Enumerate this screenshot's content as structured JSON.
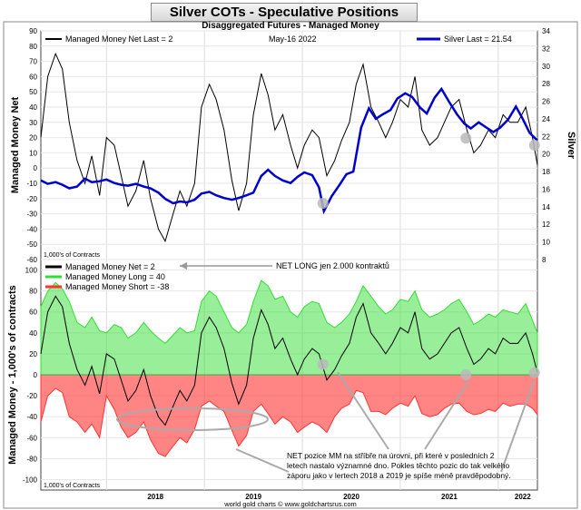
{
  "title": "Silver COTs - Speculative Positions",
  "footer": "world gold charts © www.goldchartsrus.com",
  "years": [
    "2018",
    "2019",
    "2020",
    "2021",
    "2022"
  ],
  "colors": {
    "net": "#000000",
    "silver": "#0000cc",
    "long": "#33dd33",
    "short": "#ff3333",
    "marker": "#b8b8b8"
  },
  "chart_data": [
    {
      "type": "line",
      "subtitle": "Disaggregated Futures - Managed Money",
      "date_label": "May-16  2022",
      "legend": {
        "net": "Managed Money Net   Last = 2",
        "silver": "Silver Last = 21.54"
      },
      "ylabel_left": "Managed Money Net",
      "ylabel_right": "Silver",
      "units_note": "1,000's of Contracts",
      "ylim_left": [
        -60,
        90
      ],
      "ylim_right": [
        8,
        34
      ],
      "yticks_left": [
        90,
        80,
        70,
        60,
        50,
        40,
        30,
        20,
        10,
        0,
        -10,
        -20,
        -30,
        -40,
        -50,
        -60
      ],
      "yticks_right": [
        34,
        32,
        30,
        28,
        26,
        24,
        22,
        20,
        18,
        16,
        14,
        12,
        10,
        8
      ],
      "x_range": [
        2017.33,
        2022.4
      ],
      "series": [
        {
          "name": "Managed Money Net",
          "axis": "left",
          "x": [
            2017.33,
            2017.4,
            2017.48,
            2017.55,
            2017.62,
            2017.7,
            2017.78,
            2017.85,
            2017.93,
            2018.0,
            2018.08,
            2018.15,
            2018.22,
            2018.3,
            2018.38,
            2018.45,
            2018.53,
            2018.6,
            2018.68,
            2018.75,
            2018.82,
            2018.9,
            2018.97,
            2019.05,
            2019.12,
            2019.2,
            2019.28,
            2019.35,
            2019.43,
            2019.5,
            2019.58,
            2019.65,
            2019.72,
            2019.8,
            2019.88,
            2019.95,
            2020.02,
            2020.1,
            2020.17,
            2020.25,
            2020.33,
            2020.4,
            2020.48,
            2020.55,
            2020.62,
            2020.7,
            2020.78,
            2020.85,
            2020.92,
            2021.0,
            2021.08,
            2021.15,
            2021.22,
            2021.3,
            2021.38,
            2021.45,
            2021.52,
            2021.6,
            2021.68,
            2021.75,
            2021.82,
            2021.9,
            2021.97,
            2022.05,
            2022.12,
            2022.2,
            2022.28,
            2022.35,
            2022.4
          ],
          "y": [
            20,
            60,
            75,
            65,
            30,
            5,
            -10,
            8,
            -18,
            20,
            15,
            -5,
            -25,
            -15,
            5,
            -20,
            -40,
            -48,
            -30,
            -15,
            -25,
            -10,
            40,
            55,
            45,
            25,
            -8,
            -28,
            -10,
            35,
            62,
            48,
            25,
            35,
            15,
            0,
            15,
            25,
            20,
            -5,
            5,
            18,
            30,
            55,
            68,
            40,
            30,
            20,
            30,
            45,
            40,
            60,
            25,
            15,
            20,
            30,
            40,
            45,
            25,
            10,
            15,
            25,
            20,
            35,
            30,
            30,
            40,
            20,
            2
          ]
        },
        {
          "name": "Silver",
          "axis": "right",
          "x": [
            2017.33,
            2017.4,
            2017.48,
            2017.55,
            2017.62,
            2017.7,
            2017.78,
            2017.85,
            2017.93,
            2018.0,
            2018.08,
            2018.15,
            2018.22,
            2018.3,
            2018.38,
            2018.45,
            2018.53,
            2018.6,
            2018.68,
            2018.75,
            2018.82,
            2018.9,
            2018.97,
            2019.05,
            2019.12,
            2019.2,
            2019.28,
            2019.35,
            2019.43,
            2019.5,
            2019.58,
            2019.65,
            2019.72,
            2019.8,
            2019.88,
            2019.95,
            2020.02,
            2020.1,
            2020.17,
            2020.22,
            2020.3,
            2020.38,
            2020.45,
            2020.52,
            2020.6,
            2020.68,
            2020.75,
            2020.82,
            2020.9,
            2020.97,
            2021.05,
            2021.12,
            2021.2,
            2021.27,
            2021.35,
            2021.42,
            2021.5,
            2021.58,
            2021.65,
            2021.72,
            2021.8,
            2021.88,
            2021.95,
            2022.02,
            2022.1,
            2022.18,
            2022.25,
            2022.32,
            2022.4
          ],
          "y": [
            17.0,
            16.6,
            16.8,
            16.5,
            16.1,
            16.3,
            17.2,
            16.8,
            16.9,
            17.1,
            16.7,
            16.5,
            16.4,
            16.6,
            16.3,
            16.1,
            15.6,
            14.9,
            14.4,
            14.6,
            14.5,
            14.8,
            15.5,
            15.7,
            15.3,
            15.0,
            14.8,
            15.0,
            15.3,
            15.6,
            17.5,
            18.2,
            17.5,
            17.0,
            16.7,
            17.4,
            17.9,
            17.6,
            16.2,
            13.5,
            15.2,
            16.5,
            17.7,
            18.0,
            23.0,
            25.2,
            24.0,
            24.5,
            25.0,
            26.3,
            26.9,
            26.5,
            25.3,
            24.6,
            26.4,
            27.4,
            25.9,
            24.5,
            23.5,
            22.9,
            23.6,
            23.0,
            22.5,
            23.0,
            23.9,
            25.4,
            24.0,
            22.4,
            21.54
          ]
        }
      ],
      "markers": [
        {
          "x": 2020.21,
          "y": 14.4
        },
        {
          "x": 2021.67,
          "y": 21.8
        },
        {
          "x": 2022.37,
          "y": 21.0
        }
      ]
    },
    {
      "type": "area",
      "legend": [
        "Managed Money Net   = 2",
        "Managed Money Long   = 40",
        "Managed Money Short  = -38"
      ],
      "annotation_top": "NET LONG jen 2.000 kontraktů",
      "annotation_bottom": [
        "NET pozice MM na stříbře na úrovni, při které v posledních 2",
        "letech nastalo významné dno. Pokles těchto pozic do tak velkého",
        "záporu jako v lertech 2018 a 2019 je spíše méně pravděpodobný."
      ],
      "ylabel": "Managed Money - 1,000's of contracts",
      "units_note": "1,000's of Contracts",
      "ylim": [
        -110,
        110
      ],
      "yticks": [
        100,
        80,
        60,
        40,
        20,
        0,
        -20,
        -40,
        -60,
        -80,
        -100
      ],
      "x_range": [
        2017.33,
        2022.4
      ],
      "series": [
        {
          "name": "Managed Money Long",
          "x": [
            2017.33,
            2017.4,
            2017.48,
            2017.55,
            2017.62,
            2017.7,
            2017.78,
            2017.85,
            2017.93,
            2018.0,
            2018.08,
            2018.15,
            2018.22,
            2018.3,
            2018.38,
            2018.45,
            2018.53,
            2018.6,
            2018.68,
            2018.75,
            2018.82,
            2018.9,
            2018.97,
            2019.05,
            2019.12,
            2019.2,
            2019.28,
            2019.35,
            2019.43,
            2019.5,
            2019.58,
            2019.65,
            2019.72,
            2019.8,
            2019.88,
            2019.95,
            2020.02,
            2020.1,
            2020.17,
            2020.25,
            2020.33,
            2020.4,
            2020.48,
            2020.55,
            2020.62,
            2020.7,
            2020.78,
            2020.85,
            2020.92,
            2021.0,
            2021.08,
            2021.15,
            2021.22,
            2021.3,
            2021.38,
            2021.45,
            2021.52,
            2021.6,
            2021.68,
            2021.75,
            2021.82,
            2021.9,
            2021.97,
            2022.05,
            2022.12,
            2022.2,
            2022.28,
            2022.35,
            2022.4
          ],
          "y": [
            65,
            80,
            88,
            82,
            70,
            50,
            45,
            55,
            42,
            40,
            48,
            45,
            35,
            40,
            50,
            42,
            35,
            30,
            38,
            45,
            40,
            42,
            70,
            80,
            75,
            60,
            45,
            40,
            48,
            70,
            90,
            85,
            72,
            75,
            60,
            55,
            65,
            70,
            68,
            50,
            45,
            50,
            58,
            70,
            85,
            75,
            65,
            58,
            62,
            72,
            70,
            80,
            62,
            55,
            58,
            62,
            68,
            72,
            60,
            48,
            52,
            58,
            55,
            62,
            60,
            58,
            68,
            52,
            40
          ]
        },
        {
          "name": "Managed Money Short",
          "x": [
            2017.33,
            2017.4,
            2017.48,
            2017.55,
            2017.62,
            2017.7,
            2017.78,
            2017.85,
            2017.93,
            2018.0,
            2018.08,
            2018.15,
            2018.22,
            2018.3,
            2018.38,
            2018.45,
            2018.53,
            2018.6,
            2018.68,
            2018.75,
            2018.82,
            2018.9,
            2018.97,
            2019.05,
            2019.12,
            2019.2,
            2019.28,
            2019.35,
            2019.43,
            2019.5,
            2019.58,
            2019.65,
            2019.72,
            2019.8,
            2019.88,
            2019.95,
            2020.02,
            2020.1,
            2020.17,
            2020.25,
            2020.33,
            2020.4,
            2020.48,
            2020.55,
            2020.62,
            2020.7,
            2020.78,
            2020.85,
            2020.92,
            2021.0,
            2021.08,
            2021.15,
            2021.22,
            2021.3,
            2021.38,
            2021.45,
            2021.52,
            2021.6,
            2021.68,
            2021.75,
            2021.82,
            2021.9,
            2021.97,
            2022.05,
            2022.12,
            2022.2,
            2022.28,
            2022.35,
            2022.4
          ],
          "y": [
            -45,
            -20,
            -13,
            -17,
            -40,
            -45,
            -55,
            -47,
            -60,
            -20,
            -33,
            -50,
            -60,
            -55,
            -45,
            -62,
            -75,
            -78,
            -68,
            -60,
            -65,
            -52,
            -30,
            -25,
            -30,
            -35,
            -53,
            -68,
            -58,
            -35,
            -28,
            -37,
            -47,
            -40,
            -45,
            -55,
            -50,
            -45,
            -48,
            -55,
            -40,
            -32,
            -28,
            -15,
            -17,
            -35,
            -35,
            -38,
            -32,
            -27,
            -30,
            -20,
            -37,
            -40,
            -38,
            -32,
            -28,
            -27,
            -35,
            -38,
            -37,
            -33,
            -35,
            -27,
            -30,
            -28,
            -28,
            -32,
            -38
          ]
        },
        {
          "name": "Managed Money Net",
          "x": [
            2017.33,
            2017.4,
            2017.48,
            2017.55,
            2017.62,
            2017.7,
            2017.78,
            2017.85,
            2017.93,
            2018.0,
            2018.08,
            2018.15,
            2018.22,
            2018.3,
            2018.38,
            2018.45,
            2018.53,
            2018.6,
            2018.68,
            2018.75,
            2018.82,
            2018.9,
            2018.97,
            2019.05,
            2019.12,
            2019.2,
            2019.28,
            2019.35,
            2019.43,
            2019.5,
            2019.58,
            2019.65,
            2019.72,
            2019.8,
            2019.88,
            2019.95,
            2020.02,
            2020.1,
            2020.17,
            2020.25,
            2020.33,
            2020.4,
            2020.48,
            2020.55,
            2020.62,
            2020.7,
            2020.78,
            2020.85,
            2020.92,
            2021.0,
            2021.08,
            2021.15,
            2021.22,
            2021.3,
            2021.38,
            2021.45,
            2021.52,
            2021.6,
            2021.68,
            2021.75,
            2021.82,
            2021.9,
            2021.97,
            2022.05,
            2022.12,
            2022.2,
            2022.28,
            2022.35,
            2022.4
          ],
          "y": [
            20,
            60,
            75,
            65,
            30,
            5,
            -10,
            8,
            -18,
            20,
            15,
            -5,
            -25,
            -15,
            5,
            -20,
            -40,
            -48,
            -30,
            -15,
            -25,
            -10,
            40,
            55,
            45,
            25,
            -8,
            -28,
            -10,
            35,
            62,
            48,
            25,
            35,
            15,
            0,
            15,
            25,
            20,
            -5,
            5,
            18,
            30,
            55,
            68,
            40,
            30,
            20,
            30,
            45,
            40,
            60,
            25,
            15,
            20,
            30,
            40,
            45,
            25,
            10,
            15,
            25,
            20,
            35,
            30,
            30,
            40,
            20,
            2
          ]
        }
      ],
      "markers": [
        {
          "x": 2020.21,
          "y": 10
        },
        {
          "x": 2021.67,
          "y": 0
        },
        {
          "x": 2022.37,
          "y": 2
        }
      ]
    }
  ]
}
